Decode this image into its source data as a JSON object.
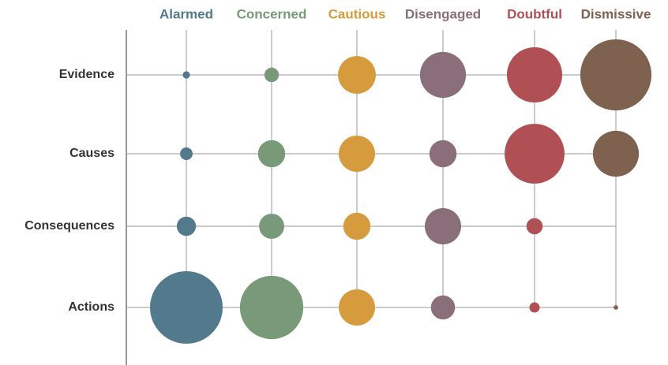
{
  "chart_data": {
    "type": "bubble_grid",
    "categories": [
      "Evidence",
      "Causes",
      "Consequences",
      "Actions"
    ],
    "series": [
      {
        "name": "Alarmed",
        "color": "#527a8c",
        "values": [
          1,
          3,
          7,
          100
        ]
      },
      {
        "name": "Concerned",
        "color": "#789a78",
        "values": [
          4,
          14,
          12,
          76
        ]
      },
      {
        "name": "Cautious",
        "color": "#d69b3c",
        "values": [
          27,
          25,
          14,
          25
        ]
      },
      {
        "name": "Disengaged",
        "color": "#8a6e7a",
        "values": [
          40,
          14,
          25,
          11
        ]
      },
      {
        "name": "Doubtful",
        "color": "#b05055",
        "values": [
          58,
          68,
          5,
          2
        ]
      },
      {
        "name": "Dismissive",
        "color": "#7f6150",
        "values": [
          96,
          40,
          null,
          0.4
        ]
      }
    ]
  }
}
